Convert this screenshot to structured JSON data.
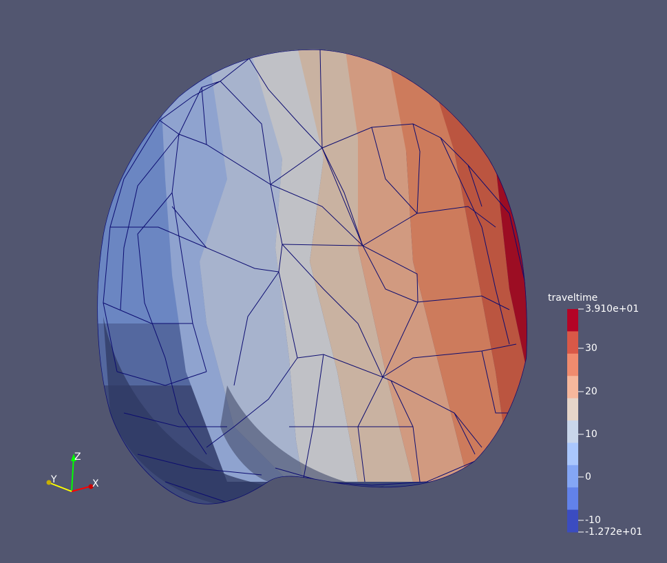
{
  "scene": {
    "object": "tetrahedral-mesh-sphere",
    "surface_colors_by_band": [
      "#6e8bd6",
      "#8ea4cf",
      "#a7b4cc",
      "#c2c2c6",
      "#c9b3a3",
      "#d19a80",
      "#cf7a5a",
      "#c05a44",
      "#9d0c22"
    ],
    "mesh_edge_color": "#0b0b70",
    "background": "#525670"
  },
  "colorbar": {
    "title": "traveltime",
    "max_label": "3.910e+01",
    "min_label": "-1.272e+01",
    "tick_labels": [
      "30",
      "20",
      "10",
      "0",
      "-10"
    ],
    "colors": [
      "#b40426",
      "#d95847",
      "#f08b6e",
      "#f6b79c",
      "#e6d5c9",
      "#c9d6ea",
      "#aac7fd",
      "#84a6f5",
      "#6282ea",
      "#3b4cc0"
    ]
  },
  "axes": {
    "x_label": "X",
    "y_label": "Y",
    "z_label": "Z",
    "x_color": "#ff0000",
    "y_color": "#ffff00",
    "z_color": "#00ff00"
  }
}
